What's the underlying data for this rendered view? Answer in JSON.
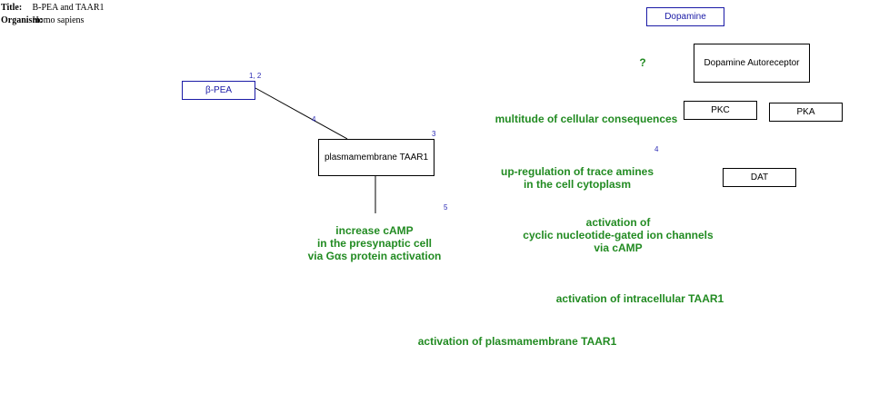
{
  "header": {
    "title_key": "Title:",
    "title_value": "B-PEA and TAAR1",
    "organism_key": "Organism:",
    "organism_value": "Homo sapiens"
  },
  "nodes": {
    "dopamine": "Dopamine",
    "dopamine_autoreceptor": "Dopamine Autoreceptor",
    "pkc": "PKC",
    "pka": "PKA",
    "dat": "DAT",
    "beta_pea": "β-PEA",
    "plasmamembrane_taar1": "plasmamembrane TAAR1"
  },
  "labels": {
    "question": "?",
    "multitude": "multitude of cellular consequences",
    "upregulation": "up-regulation of trace amines\nin the cell cytoplasm",
    "increase_camp": "increase cAMP\nin the presynaptic cell\nvia Gαs protein activation",
    "cng_channels": "activation of\ncyclic nucleotide-gated ion channels\nvia cAMP",
    "intracellular_taar1": "activation of intracellular TAAR1",
    "plasmamembrane_activation": "activation of plasmamembrane TAAR1"
  },
  "refs": {
    "beta_pea": "1, 2",
    "edge_beta_pea": "4",
    "taar1": "3",
    "pkc_area": "4",
    "increase_camp": "5"
  },
  "colors": {
    "process_label": "#228b22",
    "ligand_border": "#1a1aa6",
    "reference": "#2b2bb5"
  }
}
